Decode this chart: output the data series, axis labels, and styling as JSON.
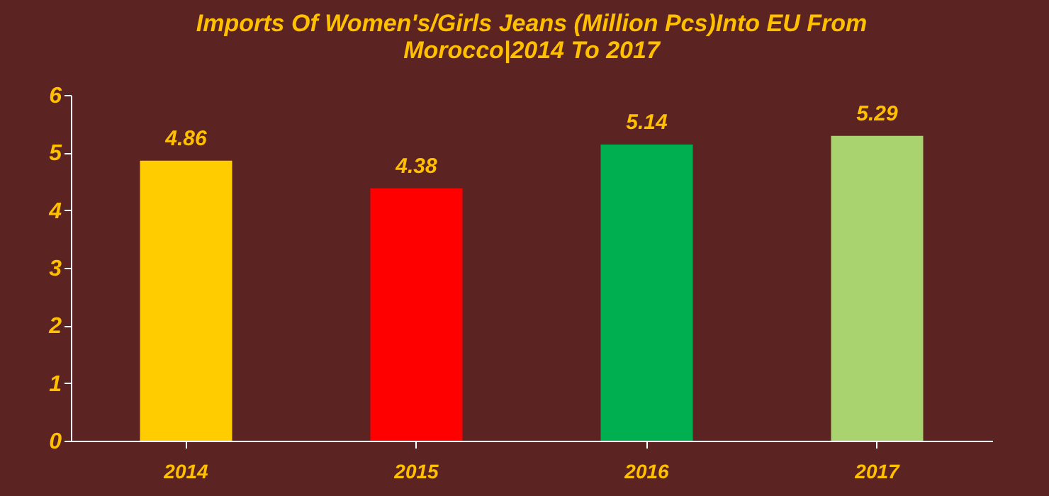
{
  "chart_data": {
    "type": "bar",
    "title": [
      "Imports Of Women's/Girls Jeans (Million Pcs)Into EU From",
      "Morocco|2014 To 2017"
    ],
    "categories": [
      "2014",
      "2015",
      "2016",
      "2017"
    ],
    "values": [
      4.86,
      4.38,
      5.14,
      5.29
    ],
    "colors": [
      "#ffcc00",
      "#ff0000",
      "#00b050",
      "#a9d36e"
    ],
    "ylim": [
      0,
      6
    ],
    "yticks": [
      0,
      1,
      2,
      3,
      4,
      5,
      6
    ],
    "grid": false,
    "data_labels": true
  }
}
